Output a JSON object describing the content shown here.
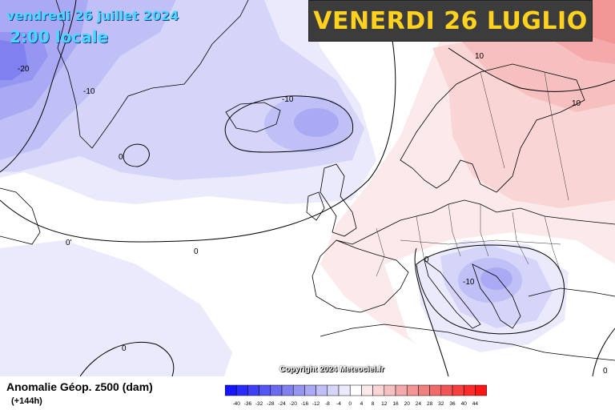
{
  "header": {
    "date_line": "vendredi 26 juillet 2024",
    "time_line": "2:00 locale",
    "banner": "VENERDI 26 LUGLIO"
  },
  "copyright": "Copyright 2024 Meteociel.fr",
  "footer": {
    "title": "Anomalie Géop. z500 (dam)",
    "forecast_step": "(+144h)"
  },
  "legend": {
    "ticks": [
      "-40",
      "-36",
      "-32",
      "-28",
      "-24",
      "-20",
      "-16",
      "-12",
      "-8",
      "-4",
      "0",
      "4",
      "8",
      "12",
      "16",
      "20",
      "24",
      "28",
      "32",
      "36",
      "40",
      "44"
    ],
    "colors": [
      "#1515ff",
      "#2a2aff",
      "#3f3ff8",
      "#5555f2",
      "#6a6af0",
      "#8080f0",
      "#9595f2",
      "#aaaaf4",
      "#c0c0f6",
      "#d5d5fa",
      "#eaeafc",
      "#ffffff",
      "#fceaea",
      "#fad5d5",
      "#f6c0c0",
      "#f4aaaa",
      "#f29595",
      "#f08080",
      "#f06a6a",
      "#f25555",
      "#f83f3f",
      "#ff2a2a",
      "#ff1515"
    ]
  },
  "contour_labels": [
    {
      "text": "-20",
      "near": "Greenland west coast"
    },
    {
      "text": "-10",
      "near": "Greenland"
    },
    {
      "text": "0",
      "near": "Greenland Sea"
    },
    {
      "text": "-10",
      "near": "Iceland"
    },
    {
      "text": "0'",
      "near": "Atlantic west"
    },
    {
      "text": "0",
      "near": "Atlantic middle"
    },
    {
      "text": "10",
      "near": "Scandinavia north"
    },
    {
      "text": "10",
      "near": "Russia north"
    },
    {
      "text": "0",
      "near": "Alps"
    },
    {
      "text": "-10",
      "near": "Balkans"
    },
    {
      "text": "0",
      "near": "Atlantic south"
    },
    {
      "text": "0",
      "near": "Turkey"
    }
  ]
}
